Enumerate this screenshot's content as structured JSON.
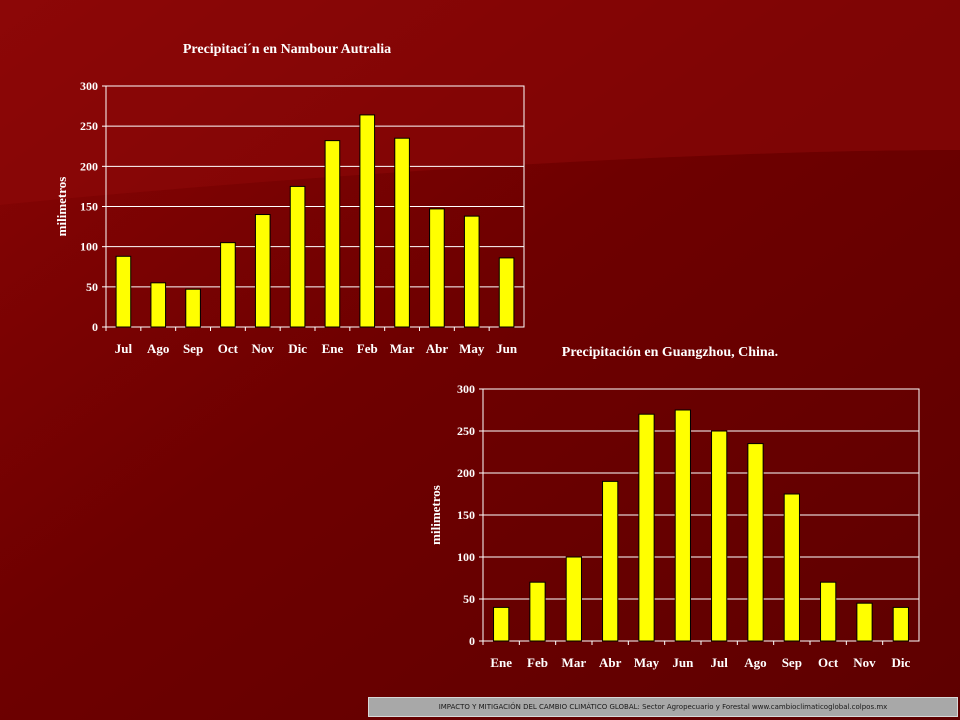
{
  "background": {
    "base": "#6e0000",
    "highlight": "#8e0a0a"
  },
  "footer": {
    "text": "IMPACTO Y MITIGACIÓN DEL CAMBIO CLIMÁTICO GLOBAL: Sector Agropecuario y Forestal www.cambioclimaticoglobal.colpos.mx"
  },
  "chart_data": [
    {
      "type": "bar",
      "title": "Precipitaci´n en Nambour Autralia",
      "ylabel": "milimetros",
      "xlabel": "",
      "ylim": [
        0,
        300
      ],
      "yticks": [
        0,
        50,
        100,
        150,
        200,
        250,
        300
      ],
      "grid": true,
      "bar_color": "#ffff00",
      "categories": [
        "Jul",
        "Ago",
        "Sep",
        "Oct",
        "Nov",
        "Dic",
        "Ene",
        "Feb",
        "Mar",
        "Abr",
        "May",
        "Jun"
      ],
      "values": [
        88,
        55,
        47,
        105,
        140,
        175,
        232,
        264,
        235,
        147,
        138,
        86
      ]
    },
    {
      "type": "bar",
      "title": "Precipitación en Guangzhou, China.",
      "ylabel": "milimetros",
      "xlabel": "",
      "ylim": [
        0,
        300
      ],
      "yticks": [
        0,
        50,
        100,
        150,
        200,
        250,
        300
      ],
      "grid": true,
      "bar_color": "#ffff00",
      "categories": [
        "Ene",
        "Feb",
        "Mar",
        "Abr",
        "May",
        "Jun",
        "Jul",
        "Ago",
        "Sep",
        "Oct",
        "Nov",
        "Dic"
      ],
      "values": [
        40,
        70,
        100,
        190,
        270,
        275,
        250,
        235,
        175,
        70,
        45,
        40
      ]
    }
  ]
}
